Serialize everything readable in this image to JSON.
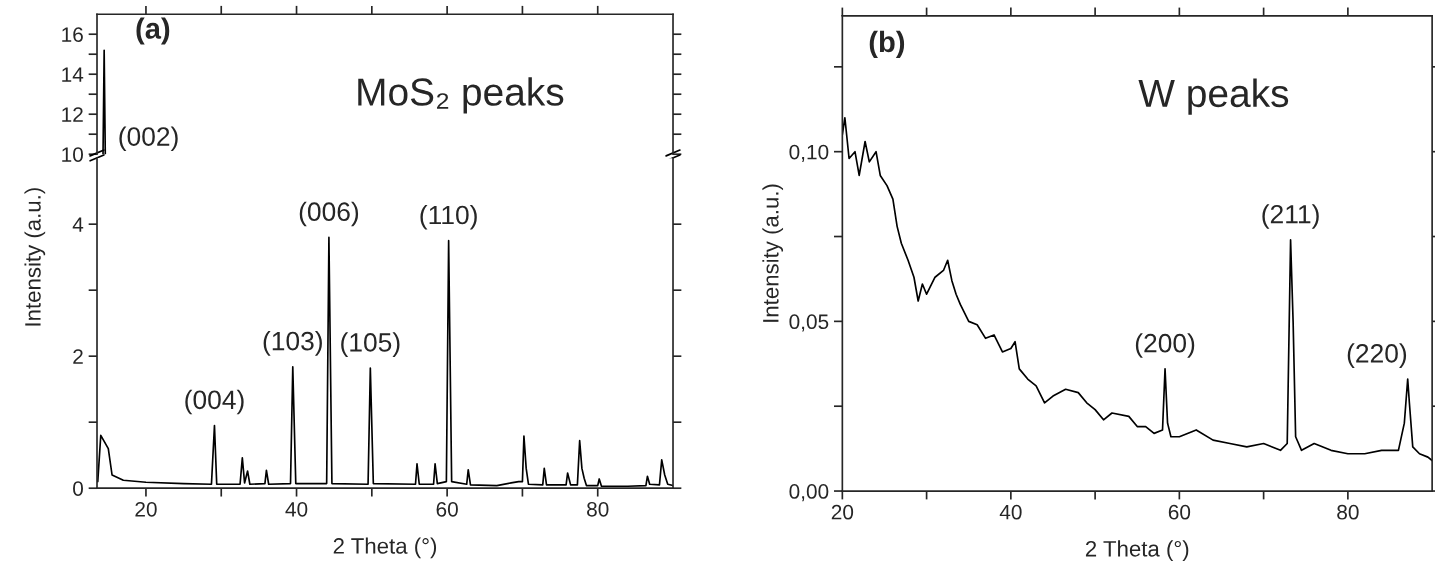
{
  "chart_data": [
    {
      "type": "line",
      "xlim": [
        13.5,
        90
      ],
      "ylim": [
        10,
        17
      ],
      "tick_labels": "y",
      "xticks": [
        20,
        {
          "value": 30,
          "label": null
        },
        40,
        {
          "value": 50,
          "label": null
        },
        60,
        {
          "value": 70,
          "label": null
        },
        80
      ],
      "yticks": [
        10,
        {
          "value": 11,
          "label": null
        },
        12,
        {
          "value": 13,
          "label": null
        },
        14,
        {
          "value": 15,
          "label": null
        },
        16
      ],
      "series": [
        {
          "color": "#000000",
          "x": [
            14.3,
            14.45,
            14.6
          ],
          "values": [
            10,
            15.2,
            10
          ]
        }
      ],
      "annotations": [
        "(a)",
        "MoS₂ peaks",
        "(002)"
      ]
    },
    {
      "type": "line",
      "xlim": [
        13.5,
        90
      ],
      "ylim": [
        0,
        5
      ],
      "xlabel": "2 Theta (°)",
      "ylabel": "Intensity (a.u.)",
      "xticks": [
        20,
        {
          "value": 30,
          "label": null
        },
        40,
        {
          "value": 50,
          "label": null
        },
        60,
        {
          "value": 70,
          "label": null
        },
        80
      ],
      "yticks": [
        0,
        {
          "value": 1,
          "label": null
        },
        2,
        {
          "value": 3,
          "label": null
        },
        4
      ],
      "series": [
        {
          "color": "#000000",
          "x": [
            13.6,
            14.0,
            14.2,
            14.7,
            15.0,
            15.5,
            17,
            20,
            25,
            28.7,
            29.1,
            29.4,
            32.5,
            32.8,
            33.1,
            33.5,
            33.8,
            35.8,
            36.0,
            36.3,
            39.2,
            39.5,
            39.9,
            44.0,
            44.3,
            44.7,
            49.5,
            49.8,
            50.2,
            55.8,
            56.0,
            56.3,
            58.2,
            58.4,
            58.7,
            59.9,
            60.2,
            60.6,
            62.6,
            62.8,
            63.1,
            66.6,
            68.5,
            69.5,
            70.0,
            70.2,
            70.5,
            70.8,
            72.7,
            72.9,
            73.2,
            75.8,
            76.0,
            76.4,
            77.3,
            77.6,
            77.9,
            78.2,
            78.5,
            80.0,
            80.2,
            80.5,
            84,
            86.4,
            86.6,
            86.9,
            88.2,
            88.5,
            88.9,
            89.3,
            90
          ],
          "values": [
            0.1,
            0.8,
            null,
            null,
            0.6,
            0.2,
            0.12,
            0.09,
            0.07,
            0.06,
            0.95,
            0.06,
            0.06,
            0.46,
            0.08,
            0.26,
            0.06,
            0.07,
            0.27,
            0.06,
            0.07,
            1.84,
            0.07,
            0.07,
            3.8,
            0.07,
            0.06,
            1.82,
            0.07,
            0.06,
            0.37,
            0.06,
            0.06,
            0.37,
            0.07,
            0.1,
            3.75,
            0.1,
            0.06,
            0.28,
            0.05,
            0.04,
            0.08,
            0.1,
            0.1,
            0.79,
            0.3,
            0.06,
            0.05,
            0.3,
            0.05,
            0.05,
            0.23,
            0.05,
            0.05,
            0.72,
            0.3,
            0.15,
            0.04,
            0.04,
            0.14,
            0.03,
            0.03,
            0.04,
            0.18,
            0.06,
            0.05,
            0.43,
            0.2,
            0.06,
            0.04
          ]
        }
      ],
      "annotations": [
        {
          "text": "(004)",
          "x": 29.1,
          "y": 0.95
        },
        {
          "text": "(103)",
          "x": 39.5,
          "y": 1.84
        },
        {
          "text": "(006)",
          "x": 44.3,
          "y": 3.8
        },
        {
          "text": "(105)",
          "x": 49.8,
          "y": 1.82
        },
        {
          "text": "(110)",
          "x": 60.2,
          "y": 3.75
        }
      ]
    },
    {
      "type": "line",
      "xlim": [
        20,
        90
      ],
      "ylim": [
        0,
        0.14
      ],
      "xlabel": "2 Theta (°)",
      "ylabel": "Intensity (a.u.)",
      "xticks": [
        20,
        {
          "value": 30,
          "label": null
        },
        40,
        {
          "value": 50,
          "label": null
        },
        60,
        {
          "value": 70,
          "label": null
        },
        80
      ],
      "yticks": [
        {
          "value": 0,
          "label": "0,00"
        },
        {
          "value": 0.025,
          "label": null
        },
        {
          "value": 0.05,
          "label": "0,05"
        },
        {
          "value": 0.075,
          "label": null
        },
        {
          "value": 0.1,
          "label": "0,10"
        },
        {
          "value": 0.125,
          "label": null
        }
      ],
      "series": [
        {
          "color": "#000000",
          "x": [
            20,
            20.3,
            20.8,
            21.5,
            22,
            22.7,
            23.2,
            24,
            24.5,
            25.3,
            26,
            26.5,
            27,
            27.8,
            28.5,
            29,
            29.5,
            30,
            31,
            32,
            32.5,
            33,
            33.5,
            34,
            35,
            36,
            37,
            38,
            39,
            40,
            40.5,
            41,
            42,
            43,
            44,
            45,
            46.5,
            48,
            49,
            50,
            51,
            52,
            54,
            55,
            56,
            57,
            58,
            58.3,
            58.6,
            59,
            60,
            62,
            64,
            66,
            68,
            70,
            72,
            72.8,
            73.2,
            73.5,
            73.8,
            74.5,
            76,
            78,
            80,
            82,
            84,
            86,
            86.7,
            87.1,
            87.3,
            87.7,
            88.5,
            89.5,
            90
          ],
          "values": [
            0.105,
            0.11,
            0.098,
            0.1,
            0.093,
            0.103,
            0.097,
            0.1,
            0.093,
            0.09,
            0.086,
            0.078,
            0.073,
            0.068,
            0.063,
            0.056,
            0.061,
            0.058,
            0.063,
            0.065,
            0.068,
            0.062,
            0.058,
            0.055,
            0.05,
            0.049,
            0.045,
            0.046,
            0.041,
            0.042,
            0.044,
            0.036,
            0.033,
            0.031,
            0.026,
            0.028,
            0.03,
            0.029,
            0.026,
            0.024,
            0.021,
            0.023,
            0.022,
            0.019,
            0.019,
            0.017,
            0.018,
            0.036,
            0.02,
            0.016,
            0.016,
            0.018,
            0.015,
            0.014,
            0.013,
            0.014,
            0.012,
            0.014,
            0.074,
            0.05,
            0.016,
            0.012,
            0.014,
            0.012,
            0.011,
            0.011,
            0.012,
            0.012,
            0.02,
            0.033,
            0.026,
            0.013,
            0.011,
            0.01,
            0.009
          ]
        }
      ],
      "annotations": [
        "(b)",
        "W peaks",
        {
          "text": "(200)",
          "x": 58.3,
          "y": 0.036
        },
        {
          "text": "(211)",
          "x": 73.2,
          "y": 0.074
        },
        {
          "text": "(220)",
          "x": 87.1,
          "y": 0.033
        }
      ]
    }
  ]
}
